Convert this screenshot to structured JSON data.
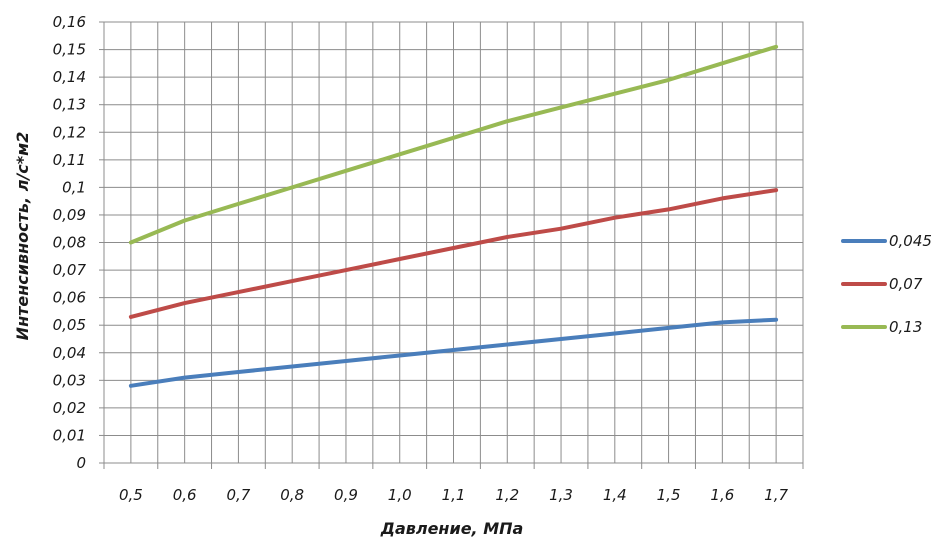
{
  "chart_data": {
    "type": "line",
    "title": "",
    "xlabel": "Давление, МПа",
    "ylabel": "Интенсивность, л/с*м2",
    "categories": [
      "0,5",
      "0,6",
      "0,7",
      "0,8",
      "0,9",
      "1,0",
      "1,1",
      "1,2",
      "1,3",
      "1,4",
      "1,5",
      "1,6",
      "1,7"
    ],
    "x": [
      0.5,
      0.6,
      0.7,
      0.8,
      0.9,
      1.0,
      1.1,
      1.2,
      1.3,
      1.4,
      1.5,
      1.6,
      1.7
    ],
    "ylim": [
      0,
      0.16
    ],
    "y_ticks": [
      0,
      0.01,
      0.02,
      0.03,
      0.04,
      0.05,
      0.06,
      0.07,
      0.08,
      0.09,
      0.1,
      0.11,
      0.12,
      0.13,
      0.14,
      0.15,
      0.16
    ],
    "y_tick_labels": [
      "0",
      "0,01",
      "0,02",
      "0,03",
      "0,04",
      "0,05",
      "0,06",
      "0,07",
      "0,08",
      "0,09",
      "0,1",
      "0,11",
      "0,12",
      "0,13",
      "0,14",
      "0,15",
      "0,16"
    ],
    "grid": true,
    "legend_position": "right",
    "series": [
      {
        "name": "0,045",
        "color": "#4a7ebb",
        "values": [
          0.028,
          0.031,
          0.033,
          0.035,
          0.037,
          0.039,
          0.041,
          0.043,
          0.045,
          0.047,
          0.049,
          0.051,
          0.052
        ]
      },
      {
        "name": "0,07",
        "color": "#be4b48",
        "values": [
          0.053,
          0.058,
          0.062,
          0.066,
          0.07,
          0.074,
          0.078,
          0.082,
          0.085,
          0.089,
          0.092,
          0.096,
          0.099
        ]
      },
      {
        "name": "0,13",
        "color": "#98b954",
        "values": [
          0.08,
          0.088,
          0.094,
          0.1,
          0.106,
          0.112,
          0.118,
          0.124,
          0.129,
          0.134,
          0.139,
          0.145,
          0.151
        ]
      }
    ]
  }
}
